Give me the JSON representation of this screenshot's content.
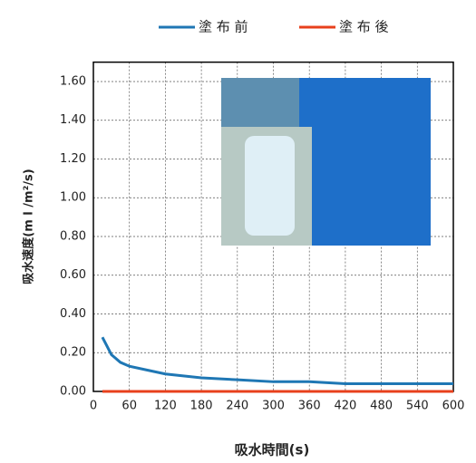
{
  "chart_data": {
    "type": "line",
    "x": [
      15,
      30,
      45,
      60,
      90,
      120,
      180,
      240,
      300,
      360,
      420,
      480,
      540,
      600
    ],
    "series": [
      {
        "name": "塗 布 前",
        "color": "#1f77b4",
        "values": [
          0.28,
          0.19,
          0.15,
          0.13,
          0.11,
          0.09,
          0.07,
          0.06,
          0.05,
          0.05,
          0.04,
          0.04,
          0.04,
          0.04
        ]
      },
      {
        "name": "塗 布 後",
        "color": "#e8401c",
        "values": [
          0,
          0,
          0,
          0,
          0,
          0,
          0,
          0,
          0,
          0,
          0,
          0,
          0,
          0
        ]
      }
    ],
    "y_label": "吸水速度(m l /m²/s)",
    "x_label": "吸水時間(s)",
    "xlim": [
      0,
      600
    ],
    "xticks": [
      0,
      60,
      120,
      180,
      240,
      300,
      360,
      420,
      480,
      540,
      600
    ],
    "ylim": [
      0,
      1.7
    ],
    "yticks": [
      {
        "value": 0,
        "label": "0.00"
      },
      {
        "value": 0.2,
        "label": "0.20"
      },
      {
        "value": 0.4,
        "label": "0.40"
      },
      {
        "value": 0.6,
        "label": "0.60"
      },
      {
        "value": 0.8,
        "label": "0.80"
      },
      {
        "value": 1.0,
        "label": "1.00"
      },
      {
        "value": 1.2,
        "label": "1.20"
      },
      {
        "value": 1.4,
        "label": "1.40"
      },
      {
        "value": 1.6,
        "label": "1.60"
      }
    ],
    "grid": true,
    "legend": "top"
  }
}
